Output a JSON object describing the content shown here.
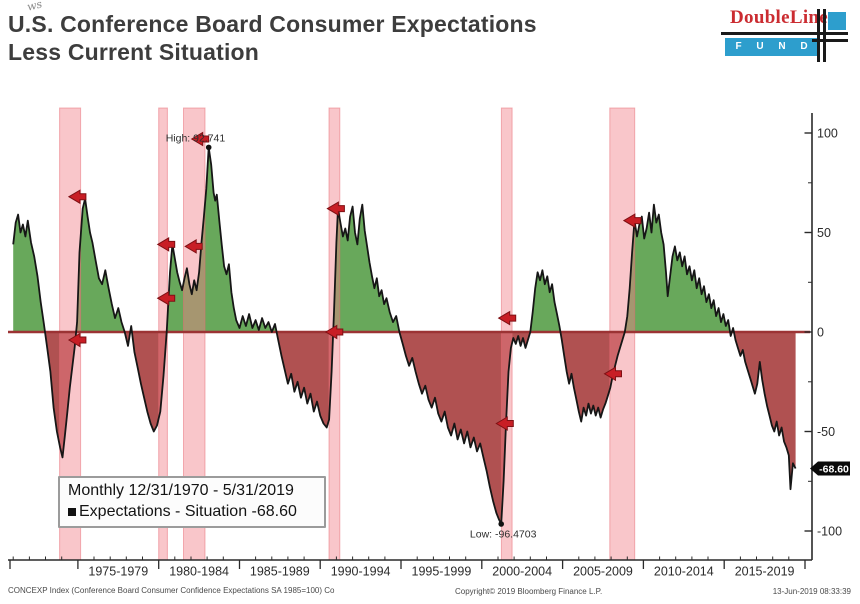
{
  "page": {
    "title_line1": "U.S. Conference Board Consumer Expectations",
    "title_line2": "Less Current Situation",
    "watermark": "ws"
  },
  "logo": {
    "brand": "DoubleLine",
    "funds": "F U N D S"
  },
  "legend": {
    "period": "Monthly 12/31/1970 - 5/31/2019",
    "series_label": "Expectations - Situation",
    "series_value": "-68.60"
  },
  "footer": {
    "left": "CONCEXP Index (Conference Board Consumer Confidence Expectations SA 1985=100) Co",
    "center": "Copyright© 2019 Bloomberg Finance L.P.",
    "right": "13-Jun-2019 08:33:39"
  },
  "colors": {
    "green_fill": "#68a85b",
    "red_fill": "#b05151",
    "recession_band": "rgba(242,128,138,0.45)",
    "recession_band_edge": "rgba(232,105,115,0.5)",
    "zero_line": "#9c3334",
    "series_line": "#161616",
    "axis": "#2a2a2a",
    "tick_text": "#2b2b2b",
    "arrow_fill": "#c81e25",
    "arrow_edge": "#7e1014",
    "tag_bg": "#0a0a0a",
    "tag_text": "#ffffff"
  },
  "chart_data": {
    "type": "area",
    "title": "U.S. Conference Board Consumer Expectations Less Current Situation",
    "series_name": "Expectations - Situation",
    "x_range": [
      1970.8,
      2020.0
    ],
    "ylim": [
      -110,
      110
    ],
    "y_axis": {
      "ticks": [
        100,
        50,
        0,
        -50,
        -100
      ],
      "minor_ticks": [
        75,
        25,
        -25,
        -75
      ]
    },
    "x_axis": {
      "boundaries": [
        1975,
        1980,
        1985,
        1990,
        1995,
        2000,
        2005,
        2010,
        2015,
        2020
      ],
      "labels": [
        "1975-1979",
        "1980-1984",
        "1985-1989",
        "1990-1994",
        "1995-1999",
        "2000-2004",
        "2005-2009",
        "2010-2014",
        "2015-2019"
      ]
    },
    "annotations": {
      "high": {
        "year": 1983.1,
        "value": 92.741,
        "label": "High: 92.741"
      },
      "low": {
        "year": 2001.2,
        "value": -96.4703,
        "label": "Low: -96.4703"
      },
      "last": {
        "label": "-68.60",
        "value": -68.6
      }
    },
    "recessions": [
      [
        1973.87,
        1975.17
      ],
      [
        1980.0,
        1980.54
      ],
      [
        1981.54,
        1982.87
      ],
      [
        1990.54,
        1991.21
      ],
      [
        2001.21,
        2001.87
      ],
      [
        2007.92,
        2009.46
      ]
    ],
    "arrows": [
      {
        "year": 1975.0,
        "value": 68
      },
      {
        "year": 1975.0,
        "value": -4
      },
      {
        "year": 1980.5,
        "value": 44
      },
      {
        "year": 1980.5,
        "value": 17
      },
      {
        "year": 1982.2,
        "value": 43
      },
      {
        "year": 1982.6,
        "value": 97
      },
      {
        "year": 1991.0,
        "value": 62
      },
      {
        "year": 1990.9,
        "value": 0
      },
      {
        "year": 2001.6,
        "value": 7
      },
      {
        "year": 2001.45,
        "value": -46
      },
      {
        "year": 2009.35,
        "value": 56
      },
      {
        "year": 2008.15,
        "value": -21
      }
    ],
    "points": [
      [
        1971.0,
        44
      ],
      [
        1971.15,
        55
      ],
      [
        1971.3,
        59
      ],
      [
        1971.45,
        50
      ],
      [
        1971.6,
        54
      ],
      [
        1971.75,
        48
      ],
      [
        1971.9,
        56
      ],
      [
        1972.1,
        45
      ],
      [
        1972.3,
        38
      ],
      [
        1972.5,
        28
      ],
      [
        1972.7,
        15
      ],
      [
        1972.9,
        4
      ],
      [
        1973.1,
        -8
      ],
      [
        1973.3,
        -20
      ],
      [
        1973.5,
        -38
      ],
      [
        1973.7,
        -50
      ],
      [
        1973.9,
        -58
      ],
      [
        1974.05,
        -63
      ],
      [
        1974.2,
        -52
      ],
      [
        1974.35,
        -40
      ],
      [
        1974.5,
        -28
      ],
      [
        1974.65,
        -18
      ],
      [
        1974.8,
        -8
      ],
      [
        1974.95,
        5
      ],
      [
        1975.1,
        40
      ],
      [
        1975.3,
        62
      ],
      [
        1975.45,
        67
      ],
      [
        1975.6,
        58
      ],
      [
        1975.75,
        50
      ],
      [
        1975.9,
        45
      ],
      [
        1976.1,
        36
      ],
      [
        1976.3,
        27
      ],
      [
        1976.5,
        24
      ],
      [
        1976.7,
        31
      ],
      [
        1976.9,
        22
      ],
      [
        1977.1,
        14
      ],
      [
        1977.3,
        7
      ],
      [
        1977.5,
        12
      ],
      [
        1977.7,
        5
      ],
      [
        1977.9,
        0
      ],
      [
        1978.1,
        -7
      ],
      [
        1978.3,
        3
      ],
      [
        1978.5,
        -10
      ],
      [
        1978.7,
        -18
      ],
      [
        1978.9,
        -26
      ],
      [
        1979.1,
        -33
      ],
      [
        1979.3,
        -40
      ],
      [
        1979.5,
        -46
      ],
      [
        1979.7,
        -50
      ],
      [
        1979.9,
        -47
      ],
      [
        1980.1,
        -40
      ],
      [
        1980.3,
        -22
      ],
      [
        1980.5,
        0
      ],
      [
        1980.7,
        30
      ],
      [
        1980.85,
        44
      ],
      [
        1981.0,
        37
      ],
      [
        1981.15,
        30
      ],
      [
        1981.3,
        25
      ],
      [
        1981.45,
        21
      ],
      [
        1981.6,
        27
      ],
      [
        1981.75,
        32
      ],
      [
        1981.9,
        24
      ],
      [
        1982.05,
        19
      ],
      [
        1982.2,
        26
      ],
      [
        1982.35,
        21
      ],
      [
        1982.5,
        30
      ],
      [
        1982.65,
        45
      ],
      [
        1982.8,
        58
      ],
      [
        1982.95,
        72
      ],
      [
        1983.1,
        92.741
      ],
      [
        1983.25,
        84
      ],
      [
        1983.4,
        70
      ],
      [
        1983.5,
        66
      ],
      [
        1983.6,
        69
      ],
      [
        1983.75,
        56
      ],
      [
        1983.9,
        44
      ],
      [
        1984.05,
        33
      ],
      [
        1984.2,
        29
      ],
      [
        1984.35,
        34
      ],
      [
        1984.5,
        20
      ],
      [
        1984.65,
        12
      ],
      [
        1984.8,
        6
      ],
      [
        1985.0,
        2
      ],
      [
        1985.2,
        8
      ],
      [
        1985.4,
        3
      ],
      [
        1985.6,
        9
      ],
      [
        1985.8,
        2
      ],
      [
        1986.0,
        6
      ],
      [
        1986.2,
        1
      ],
      [
        1986.4,
        7
      ],
      [
        1986.6,
        2
      ],
      [
        1986.8,
        5
      ],
      [
        1987.0,
        0
      ],
      [
        1987.2,
        4
      ],
      [
        1987.4,
        -4
      ],
      [
        1987.6,
        -12
      ],
      [
        1987.8,
        -19
      ],
      [
        1988.0,
        -26
      ],
      [
        1988.2,
        -21
      ],
      [
        1988.4,
        -30
      ],
      [
        1988.6,
        -25
      ],
      [
        1988.8,
        -33
      ],
      [
        1989.0,
        -28
      ],
      [
        1989.2,
        -36
      ],
      [
        1989.4,
        -31
      ],
      [
        1989.6,
        -40
      ],
      [
        1989.8,
        -35
      ],
      [
        1990.0,
        -42
      ],
      [
        1990.2,
        -46
      ],
      [
        1990.4,
        -48
      ],
      [
        1990.55,
        -44
      ],
      [
        1990.7,
        -20
      ],
      [
        1990.85,
        10
      ],
      [
        1991.0,
        45
      ],
      [
        1991.1,
        62
      ],
      [
        1991.25,
        55
      ],
      [
        1991.4,
        48
      ],
      [
        1991.55,
        52
      ],
      [
        1991.7,
        46
      ],
      [
        1991.85,
        58
      ],
      [
        1992.0,
        63
      ],
      [
        1992.15,
        50
      ],
      [
        1992.3,
        44
      ],
      [
        1992.45,
        57
      ],
      [
        1992.6,
        64
      ],
      [
        1992.75,
        51
      ],
      [
        1992.9,
        43
      ],
      [
        1993.05,
        35
      ],
      [
        1993.2,
        28
      ],
      [
        1993.35,
        22
      ],
      [
        1993.5,
        27
      ],
      [
        1993.65,
        18
      ],
      [
        1993.8,
        21
      ],
      [
        1993.95,
        14
      ],
      [
        1994.1,
        17
      ],
      [
        1994.3,
        10
      ],
      [
        1994.5,
        5
      ],
      [
        1994.7,
        8
      ],
      [
        1994.9,
        0
      ],
      [
        1995.1,
        -6
      ],
      [
        1995.3,
        -12
      ],
      [
        1995.5,
        -17
      ],
      [
        1995.7,
        -13
      ],
      [
        1995.9,
        -20
      ],
      [
        1996.1,
        -26
      ],
      [
        1996.3,
        -31
      ],
      [
        1996.5,
        -27
      ],
      [
        1996.7,
        -34
      ],
      [
        1996.9,
        -38
      ],
      [
        1997.1,
        -33
      ],
      [
        1997.3,
        -41
      ],
      [
        1997.5,
        -45
      ],
      [
        1997.7,
        -40
      ],
      [
        1997.9,
        -48
      ],
      [
        1998.1,
        -52
      ],
      [
        1998.3,
        -46
      ],
      [
        1998.5,
        -54
      ],
      [
        1998.7,
        -49
      ],
      [
        1998.9,
        -56
      ],
      [
        1999.1,
        -50
      ],
      [
        1999.3,
        -58
      ],
      [
        1999.5,
        -53
      ],
      [
        1999.7,
        -60
      ],
      [
        1999.9,
        -56
      ],
      [
        2000.1,
        -63
      ],
      [
        2000.3,
        -70
      ],
      [
        2000.5,
        -78
      ],
      [
        2000.7,
        -85
      ],
      [
        2000.9,
        -91
      ],
      [
        2001.05,
        -94
      ],
      [
        2001.2,
        -96.4703
      ],
      [
        2001.35,
        -75
      ],
      [
        2001.5,
        -45
      ],
      [
        2001.65,
        -20
      ],
      [
        2001.8,
        -8
      ],
      [
        2001.95,
        -3
      ],
      [
        2002.1,
        -6
      ],
      [
        2002.25,
        -2
      ],
      [
        2002.4,
        -7
      ],
      [
        2002.55,
        -3
      ],
      [
        2002.7,
        -8
      ],
      [
        2002.85,
        -4
      ],
      [
        2003.0,
        0
      ],
      [
        2003.15,
        10
      ],
      [
        2003.3,
        22
      ],
      [
        2003.45,
        30
      ],
      [
        2003.6,
        26
      ],
      [
        2003.75,
        31
      ],
      [
        2003.9,
        24
      ],
      [
        2004.05,
        28
      ],
      [
        2004.2,
        20
      ],
      [
        2004.35,
        24
      ],
      [
        2004.5,
        15
      ],
      [
        2004.65,
        9
      ],
      [
        2004.8,
        3
      ],
      [
        2004.95,
        -4
      ],
      [
        2005.1,
        -12
      ],
      [
        2005.25,
        -20
      ],
      [
        2005.4,
        -26
      ],
      [
        2005.55,
        -21
      ],
      [
        2005.7,
        -28
      ],
      [
        2005.85,
        -34
      ],
      [
        2006.0,
        -40
      ],
      [
        2006.15,
        -45
      ],
      [
        2006.3,
        -38
      ],
      [
        2006.45,
        -42
      ],
      [
        2006.6,
        -36
      ],
      [
        2006.75,
        -41
      ],
      [
        2006.9,
        -37
      ],
      [
        2007.05,
        -42
      ],
      [
        2007.2,
        -38
      ],
      [
        2007.35,
        -43
      ],
      [
        2007.5,
        -39
      ],
      [
        2007.65,
        -36
      ],
      [
        2007.8,
        -32
      ],
      [
        2007.95,
        -28
      ],
      [
        2008.1,
        -22
      ],
      [
        2008.25,
        -17
      ],
      [
        2008.4,
        -12
      ],
      [
        2008.55,
        -8
      ],
      [
        2008.7,
        -4
      ],
      [
        2008.85,
        0
      ],
      [
        2009.0,
        8
      ],
      [
        2009.15,
        22
      ],
      [
        2009.3,
        40
      ],
      [
        2009.45,
        56
      ],
      [
        2009.6,
        48
      ],
      [
        2009.75,
        54
      ],
      [
        2009.9,
        58
      ],
      [
        2010.05,
        47
      ],
      [
        2010.2,
        52
      ],
      [
        2010.35,
        60
      ],
      [
        2010.5,
        50
      ],
      [
        2010.65,
        64
      ],
      [
        2010.8,
        55
      ],
      [
        2010.95,
        59
      ],
      [
        2011.1,
        50
      ],
      [
        2011.25,
        44
      ],
      [
        2011.4,
        30
      ],
      [
        2011.5,
        18
      ],
      [
        2011.65,
        28
      ],
      [
        2011.8,
        38
      ],
      [
        2011.95,
        43
      ],
      [
        2012.1,
        36
      ],
      [
        2012.25,
        40
      ],
      [
        2012.4,
        33
      ],
      [
        2012.55,
        38
      ],
      [
        2012.7,
        29
      ],
      [
        2012.85,
        33
      ],
      [
        2013.0,
        26
      ],
      [
        2013.15,
        31
      ],
      [
        2013.3,
        22
      ],
      [
        2013.45,
        27
      ],
      [
        2013.6,
        19
      ],
      [
        2013.75,
        23
      ],
      [
        2013.9,
        15
      ],
      [
        2014.05,
        19
      ],
      [
        2014.2,
        12
      ],
      [
        2014.35,
        16
      ],
      [
        2014.5,
        8
      ],
      [
        2014.65,
        12
      ],
      [
        2014.8,
        5
      ],
      [
        2014.95,
        9
      ],
      [
        2015.1,
        3
      ],
      [
        2015.25,
        6
      ],
      [
        2015.4,
        -2
      ],
      [
        2015.55,
        2
      ],
      [
        2015.7,
        -4
      ],
      [
        2015.85,
        -8
      ],
      [
        2016.0,
        -12
      ],
      [
        2016.15,
        -9
      ],
      [
        2016.3,
        -15
      ],
      [
        2016.45,
        -19
      ],
      [
        2016.6,
        -23
      ],
      [
        2016.75,
        -27
      ],
      [
        2016.9,
        -31
      ],
      [
        2017.05,
        -26
      ],
      [
        2017.2,
        -15
      ],
      [
        2017.35,
        -24
      ],
      [
        2017.5,
        -31
      ],
      [
        2017.65,
        -37
      ],
      [
        2017.8,
        -42
      ],
      [
        2017.95,
        -47
      ],
      [
        2018.1,
        -50
      ],
      [
        2018.25,
        -45
      ],
      [
        2018.4,
        -52
      ],
      [
        2018.55,
        -48
      ],
      [
        2018.7,
        -55
      ],
      [
        2018.85,
        -58
      ],
      [
        2019.0,
        -62
      ],
      [
        2019.1,
        -79
      ],
      [
        2019.25,
        -66
      ],
      [
        2019.42,
        -68.6
      ]
    ]
  }
}
